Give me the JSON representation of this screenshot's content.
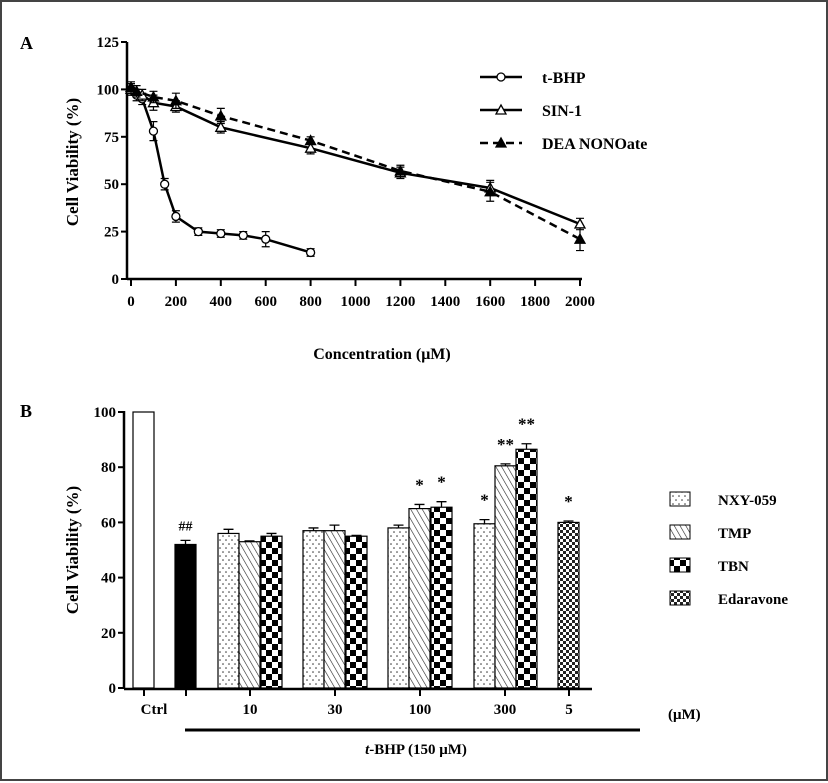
{
  "chart_data": [
    {
      "panel": "A",
      "type": "line",
      "xlabel": "Concentration (μM)",
      "ylabel": "Cell Viability (%)",
      "xlim": [
        0,
        2000
      ],
      "ylim": [
        0,
        125
      ],
      "xticks": [
        0,
        200,
        400,
        600,
        800,
        1000,
        1200,
        1400,
        1600,
        1800,
        2000
      ],
      "yticks": [
        0,
        25,
        50,
        75,
        100,
        125
      ],
      "legend_position": "top-right",
      "grid": false,
      "series": [
        {
          "name": "t-BHP",
          "marker": "open-circle",
          "dash": false,
          "x": [
            0,
            25,
            50,
            100,
            150,
            200,
            300,
            400,
            500,
            600,
            800
          ],
          "y": [
            100,
            97,
            95,
            78,
            50,
            33,
            25,
            24,
            23,
            21,
            14
          ],
          "err": [
            3,
            3,
            3,
            5,
            3,
            3,
            2,
            2,
            2,
            4,
            2
          ]
        },
        {
          "name": "SIN-1",
          "marker": "open-triangle",
          "dash": false,
          "x": [
            0,
            50,
            100,
            200,
            400,
            800,
            1200,
            1600,
            2000
          ],
          "y": [
            100,
            97,
            93,
            91,
            80,
            69,
            56,
            48,
            29
          ],
          "err": [
            3,
            3,
            4,
            3,
            3,
            3,
            3,
            4,
            3
          ]
        },
        {
          "name": "DEA NONOate",
          "marker": "filled-triangle",
          "dash": true,
          "x": [
            0,
            25,
            100,
            200,
            400,
            800,
            1200,
            1600,
            2000
          ],
          "y": [
            101,
            99,
            96,
            94,
            86,
            73,
            57,
            46,
            21
          ],
          "err": [
            3,
            3,
            3,
            4,
            4,
            2,
            3,
            5,
            6
          ]
        }
      ]
    },
    {
      "panel": "B",
      "type": "bar",
      "ylabel": "Cell Viability (%)",
      "ylim": [
        0,
        100
      ],
      "yticks": [
        0,
        20,
        40,
        60,
        80,
        100
      ],
      "categories": [
        "Ctrl",
        "",
        "10",
        "30",
        "100",
        "300",
        "5"
      ],
      "unit_label": "(μM)",
      "bracket_label_italic": "t",
      "bracket_label": "-BHP (150 μM)",
      "legend_position": "right",
      "bars": [
        {
          "group": "Ctrl",
          "fill": "white",
          "value": 100,
          "err": 0,
          "mark": ""
        },
        {
          "group": "t-BHP",
          "fill": "black",
          "value": 52,
          "err": 1.5,
          "mark": "##"
        },
        {
          "group": "10",
          "fill": "NXY-059",
          "value": 56,
          "err": 1.5,
          "mark": ""
        },
        {
          "group": "10",
          "fill": "TMP",
          "value": 53,
          "err": 0.3,
          "mark": ""
        },
        {
          "group": "10",
          "fill": "TBN",
          "value": 55,
          "err": 1,
          "mark": ""
        },
        {
          "group": "30",
          "fill": "NXY-059",
          "value": 57,
          "err": 1,
          "mark": ""
        },
        {
          "group": "30",
          "fill": "TMP",
          "value": 57,
          "err": 2,
          "mark": ""
        },
        {
          "group": "30",
          "fill": "TBN",
          "value": 55,
          "err": 0.3,
          "mark": ""
        },
        {
          "group": "100",
          "fill": "NXY-059",
          "value": 58,
          "err": 1,
          "mark": ""
        },
        {
          "group": "100",
          "fill": "TMP",
          "value": 65,
          "err": 1.5,
          "mark": "*"
        },
        {
          "group": "100",
          "fill": "TBN",
          "value": 65.5,
          "err": 2,
          "mark": "*"
        },
        {
          "group": "300",
          "fill": "NXY-059",
          "value": 59.5,
          "err": 1.5,
          "mark": "*"
        },
        {
          "group": "300",
          "fill": "TMP",
          "value": 80.5,
          "err": 0.7,
          "mark": "**"
        },
        {
          "group": "300",
          "fill": "TBN",
          "value": 86.5,
          "err": 2,
          "mark": "**"
        },
        {
          "group": "5",
          "fill": "Edaravone",
          "value": 60,
          "err": 0.5,
          "mark": "*"
        }
      ],
      "legend": [
        "NXY-059",
        "TMP",
        "TBN",
        "Edaravone"
      ]
    }
  ],
  "labels": {
    "panel_a": "A",
    "panel_b": "B"
  }
}
